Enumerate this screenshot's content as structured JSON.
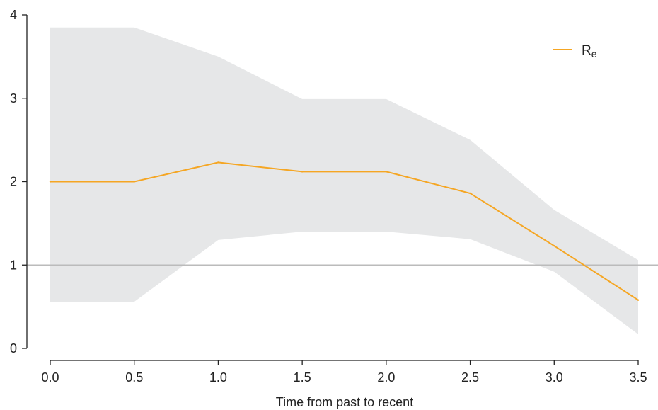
{
  "chart_data": {
    "type": "line",
    "title": "",
    "xlabel": "Time from past to recent",
    "ylabel": "",
    "xlim": [
      0,
      3.5
    ],
    "ylim": [
      0,
      4
    ],
    "x_ticks": [
      "0.0",
      "0.5",
      "1.0",
      "1.5",
      "2.0",
      "2.5",
      "3.0",
      "3.5"
    ],
    "y_ticks": [
      "0",
      "1",
      "2",
      "3",
      "4"
    ],
    "grid": false,
    "legend_position": "top-right",
    "reference_line": {
      "y": 1,
      "color": "#bbbbbb"
    },
    "series": [
      {
        "name": "R",
        "name_subscript": "e",
        "color": "#f5a623",
        "x": [
          0.0,
          0.5,
          1.0,
          1.5,
          2.0,
          2.5,
          3.0,
          3.5
        ],
        "y": [
          2.0,
          2.0,
          2.23,
          2.12,
          2.12,
          1.86,
          1.23,
          0.58
        ],
        "band": {
          "color": "#e6e7e8",
          "lower": [
            0.56,
            0.56,
            1.3,
            1.4,
            1.4,
            1.31,
            0.92,
            0.17
          ],
          "upper": [
            3.85,
            3.85,
            3.5,
            2.99,
            2.99,
            2.5,
            1.66,
            1.06
          ]
        }
      }
    ]
  }
}
